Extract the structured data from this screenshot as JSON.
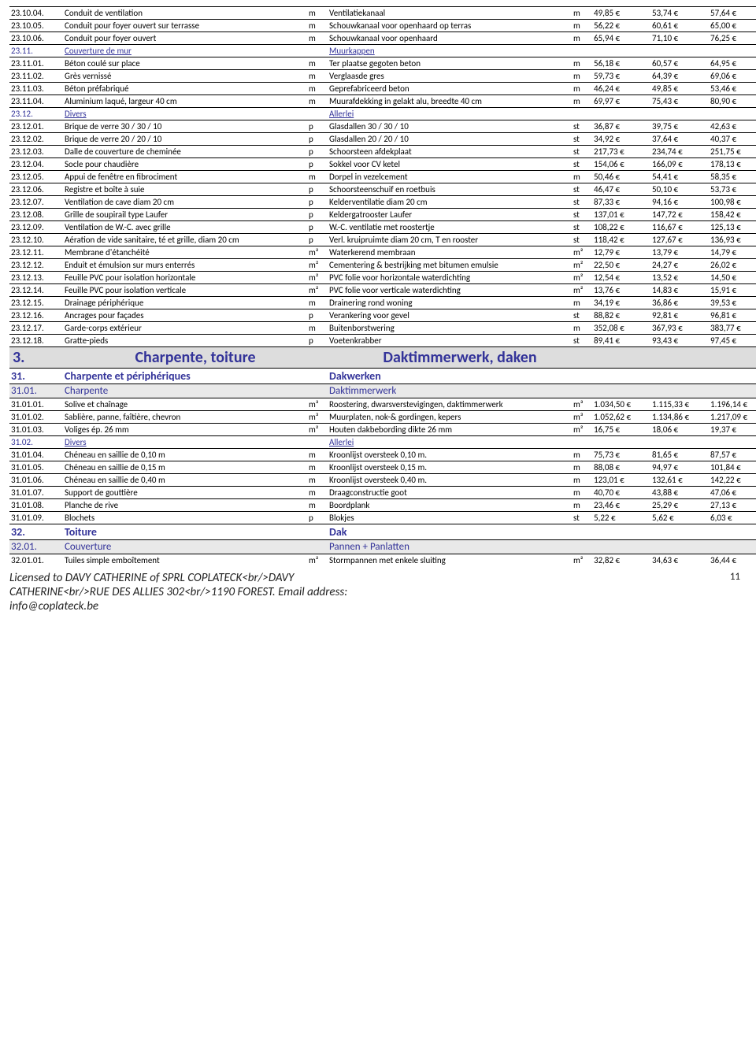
{
  "colors": {
    "accent": "#333399",
    "section_bg": "#dddddd",
    "subsection_bg": "#e9e9e9"
  },
  "columns": {
    "code_w": 68,
    "label_w": 310,
    "unit_w": 26,
    "num_w": 74
  },
  "page_number": "11",
  "footer_lines": [
    "Licensed to DAVY CATHERINE of SPRL COPLATECK<br/>DAVY",
    "CATHERINE<br/>RUE DES ALLIES 302<br/>1190 FOREST. Email address:",
    "info@coplateck.be"
  ],
  "rows": [
    {
      "t": "item",
      "code": "23.10.04.",
      "fr": "Conduit de ventilation",
      "u_fr": "m",
      "nl": "Ventilatiekanaal",
      "u_nl": "m",
      "c1": "49,85 €",
      "c2": "53,74 €",
      "c3": "57,64 €"
    },
    {
      "t": "item",
      "code": "23.10.05.",
      "fr": "Conduit pour foyer ouvert sur terrasse",
      "u_fr": "m",
      "nl": "Schouwkanaal voor openhaard op terras",
      "u_nl": "m",
      "c1": "56,22 €",
      "c2": "60,61 €",
      "c3": "65,00 €"
    },
    {
      "t": "item",
      "code": "23.10.06.",
      "fr": "Conduit pour foyer ouvert",
      "u_fr": "m",
      "nl": "Schouwkanaal  voor openhaard",
      "u_nl": "m",
      "c1": "65,94 €",
      "c2": "71,10 €",
      "c3": "76,25 €"
    },
    {
      "t": "sub",
      "code": "23.11.",
      "fr": "Couverture de mur",
      "nl": "Muurkappen"
    },
    {
      "t": "item",
      "code": "23.11.01.",
      "fr": "Béton coulé sur place",
      "u_fr": "m",
      "nl": "Ter plaatse gegoten beton",
      "u_nl": "m",
      "c1": "56,18 €",
      "c2": "60,57 €",
      "c3": "64,95 €"
    },
    {
      "t": "item",
      "code": "23.11.02.",
      "fr": "Grès vernissé",
      "u_fr": "m",
      "nl": "Verglaasde gres",
      "u_nl": "m",
      "c1": "59,73 €",
      "c2": "64,39 €",
      "c3": "69,06 €"
    },
    {
      "t": "item",
      "code": "23.11.03.",
      "fr": "Béton préfabriqué",
      "u_fr": "m",
      "nl": "Geprefabriceerd beton",
      "u_nl": "m",
      "c1": "46,24 €",
      "c2": "49,85 €",
      "c3": "53,46 €"
    },
    {
      "t": "item",
      "code": "23.11.04.",
      "fr": "Aluminium laqué, largeur 40 cm",
      "u_fr": "m",
      "nl": "Muurafdekking in gelakt alu, breedte 40 cm",
      "u_nl": "m",
      "c1": "69,97 €",
      "c2": "75,43 €",
      "c3": "80,90 €"
    },
    {
      "t": "sub",
      "code": "23.12.",
      "fr": "Divers",
      "nl": "Allerlei"
    },
    {
      "t": "item",
      "code": "23.12.01.",
      "fr": "Brique de verre 30 / 30 / 10",
      "u_fr": "p",
      "nl": "Glasdallen 30 / 30 / 10",
      "u_nl": "st",
      "c1": "36,87 €",
      "c2": "39,75 €",
      "c3": "42,63 €"
    },
    {
      "t": "item",
      "code": "23.12.02.",
      "fr": "Brique de verre 20 / 20 / 10",
      "u_fr": "p",
      "nl": "Glasdallen 20 / 20 / 10",
      "u_nl": "st",
      "c1": "34,92 €",
      "c2": "37,64 €",
      "c3": "40,37 €"
    },
    {
      "t": "item",
      "code": "23.12.03.",
      "fr": "Dalle de couverture de cheminée",
      "u_fr": "p",
      "nl": "Schoorsteen afdekplaat",
      "u_nl": "st",
      "c1": "217,73 €",
      "c2": "234,74 €",
      "c3": "251,75 €"
    },
    {
      "t": "item",
      "code": "23.12.04.",
      "fr": "Socle pour chaudière",
      "u_fr": "p",
      "nl": "Sokkel voor CV ketel",
      "u_nl": "st",
      "c1": "154,06 €",
      "c2": "166,09 €",
      "c3": "178,13 €"
    },
    {
      "t": "item",
      "code": "23.12.05.",
      "fr": "Appui de fenêtre en fibrociment",
      "u_fr": "m",
      "nl": "Dorpel in vezelcement",
      "u_nl": "m",
      "c1": "50,46 €",
      "c2": "54,41 €",
      "c3": "58,35 €"
    },
    {
      "t": "item",
      "code": "23.12.06.",
      "fr": "Registre et boîte à suie",
      "u_fr": "p",
      "nl": "Schoorsteenschuif en roetbuis",
      "u_nl": "st",
      "c1": "46,47 €",
      "c2": "50,10 €",
      "c3": "53,73 €"
    },
    {
      "t": "item",
      "code": "23.12.07.",
      "fr": "Ventilation de cave diam 20 cm",
      "u_fr": "p",
      "nl": "Kelderventilatie diam 20 cm",
      "u_nl": "st",
      "c1": "87,33 €",
      "c2": "94,16 €",
      "c3": "100,98 €"
    },
    {
      "t": "item",
      "code": "23.12.08.",
      "fr": "Grille de soupirail type Laufer",
      "u_fr": "p",
      "nl": "Keldergatrooster Laufer",
      "u_nl": "st",
      "c1": "137,01 €",
      "c2": "147,72 €",
      "c3": "158,42 €"
    },
    {
      "t": "item",
      "code": "23.12.09.",
      "fr": "Ventilation de W.-C. avec grille",
      "u_fr": "p",
      "nl": "W.-C. ventilatie met roostertje",
      "u_nl": "st",
      "c1": "108,22 €",
      "c2": "116,67 €",
      "c3": "125,13 €"
    },
    {
      "t": "item",
      "code": "23.12.10.",
      "fr": "Aération de vide sanitaire, té et grille, diam 20 cm",
      "u_fr": "p",
      "nl": "Verl. kruipruimte diam 20 cm, T en rooster",
      "u_nl": "st",
      "c1": "118,42 €",
      "c2": "127,67 €",
      "c3": "136,93 €"
    },
    {
      "t": "item",
      "code": "23.12.11.",
      "fr": "Membrane d'étanchéité",
      "u_fr": "m²",
      "nl": "Waterkerend membraan",
      "u_nl": "m²",
      "c1": "12,79 €",
      "c2": "13,79 €",
      "c3": "14,79 €"
    },
    {
      "t": "item",
      "code": "23.12.12.",
      "fr": "Enduit et émulsion sur murs enterrés",
      "u_fr": "m²",
      "nl": "Cementering & bestrijking met bitumen emulsie",
      "u_nl": "m²",
      "c1": "22,50 €",
      "c2": "24,27 €",
      "c3": "26,02 €"
    },
    {
      "t": "item",
      "code": "23.12.13.",
      "fr": "Feuille PVC pour isolation horizontale",
      "u_fr": "m²",
      "nl": "PVC folie voor horizontale waterdichting",
      "u_nl": "m²",
      "c1": "12,54 €",
      "c2": "13,52 €",
      "c3": "14,50 €"
    },
    {
      "t": "item",
      "code": "23.12.14.",
      "fr": "Feuille PVC pour isolation verticale",
      "u_fr": "m²",
      "nl": "PVC folie voor verticale waterdichting",
      "u_nl": "m²",
      "c1": "13,76 €",
      "c2": "14,83 €",
      "c3": "15,91 €"
    },
    {
      "t": "item",
      "code": "23.12.15.",
      "fr": "Drainage périphérique",
      "u_fr": "m",
      "nl": "Drainering rond woning",
      "u_nl": "m",
      "c1": "34,19 €",
      "c2": "36,86 €",
      "c3": "39,53 €"
    },
    {
      "t": "item",
      "code": "23.12.16.",
      "fr": "Ancrages pour façades",
      "u_fr": "p",
      "nl": "Verankering voor gevel",
      "u_nl": "st",
      "c1": "88,82 €",
      "c2": "92,81 €",
      "c3": "96,81 €"
    },
    {
      "t": "item",
      "code": "23.12.17.",
      "fr": "Garde-corps extérieur",
      "u_fr": "m",
      "nl": "Buitenborstwering",
      "u_nl": "m",
      "c1": "352,08 €",
      "c2": "367,93 €",
      "c3": "383,77 €"
    },
    {
      "t": "item",
      "code": "23.12.18.",
      "fr": "Gratte-pieds",
      "u_fr": "p",
      "nl": "Voetenkrabber",
      "u_nl": "st",
      "c1": "89,41 €",
      "c2": "93,43 €",
      "c3": "97,45 €"
    },
    {
      "t": "sec1",
      "code": "3.",
      "fr": "Charpente, toiture",
      "nl": "Daktimmerwerk, daken"
    },
    {
      "t": "sec2",
      "code": "31.",
      "fr": "Charpente et périphériques",
      "nl": "Dakwerken"
    },
    {
      "t": "sec3",
      "code": "31.01.",
      "fr": "Charpente",
      "nl": "Daktimmerwerk"
    },
    {
      "t": "item",
      "code": "31.01.01.",
      "fr": "Solive et chaînage",
      "u_fr": "m³",
      "nl": "Roostering, dwarsverstevigingen, daktimmerwerk",
      "u_nl": "m³",
      "c1": "1.034,50 €",
      "c2": "1.115,33 €",
      "c3": "1.196,14 €"
    },
    {
      "t": "item",
      "code": "31.01.02.",
      "fr": "Sablière, panne, faîtière, chevron",
      "u_fr": "m³",
      "nl": "Muurplaten,  nok-& gordingen, kepers",
      "u_nl": "m³",
      "c1": "1.052,62 €",
      "c2": "1.134,86 €",
      "c3": "1.217,09 €"
    },
    {
      "t": "item",
      "code": "31.01.03.",
      "fr": "Voliges ép. 26 mm",
      "u_fr": "m²",
      "nl": "Houten dakbebording dikte 26 mm",
      "u_nl": "m²",
      "c1": "16,75 €",
      "c2": "18,06 €",
      "c3": "19,37 €"
    },
    {
      "t": "sub",
      "code": "31.02.",
      "fr": "Divers",
      "nl": "Allerlei"
    },
    {
      "t": "item",
      "code": "31.01.04.",
      "fr": "Chéneau en saillie de 0,10 m",
      "u_fr": "m",
      "nl": "Kroonlijst oversteek 0,10 m.",
      "u_nl": "m",
      "c1": "75,73 €",
      "c2": "81,65 €",
      "c3": "87,57 €"
    },
    {
      "t": "item",
      "code": "31.01.05.",
      "fr": "Chéneau en saillie de 0,15 m",
      "u_fr": "m",
      "nl": "Kroonlijst oversteek 0,15 m.",
      "u_nl": "m",
      "c1": "88,08 €",
      "c2": "94,97 €",
      "c3": "101,84 €"
    },
    {
      "t": "item",
      "code": "31.01.06.",
      "fr": "Chéneau en saillie de 0,40 m",
      "u_fr": "m",
      "nl": "Kroonlijst oversteek 0,40 m.",
      "u_nl": "m",
      "c1": "123,01 €",
      "c2": "132,61 €",
      "c3": "142,22 €"
    },
    {
      "t": "item",
      "code": "31.01.07.",
      "fr": "Support de gouttière",
      "u_fr": "m",
      "nl": "Draagconstructie goot",
      "u_nl": "m",
      "c1": "40,70 €",
      "c2": "43,88 €",
      "c3": "47,06 €"
    },
    {
      "t": "item",
      "code": "31.01.08.",
      "fr": "Planche de rive",
      "u_fr": "m",
      "nl": "Boordplank",
      "u_nl": "m",
      "c1": "23,46 €",
      "c2": "25,29 €",
      "c3": "27,13 €"
    },
    {
      "t": "item",
      "code": "31.01.09.",
      "fr": "Blochets",
      "u_fr": "p",
      "nl": "Blokjes",
      "u_nl": "st",
      "c1": "5,22 €",
      "c2": "5,62 €",
      "c3": "6,03 €"
    },
    {
      "t": "sec2",
      "code": "32.",
      "fr": "Toiture",
      "nl": "Dak"
    },
    {
      "t": "sec3",
      "code": "32.01.",
      "fr": "Couverture",
      "nl": "Pannen + Panlatten"
    },
    {
      "t": "item",
      "code": "32.01.01.",
      "fr": "Tuiles simple emboîtement",
      "u_fr": "m²",
      "nl": "Stormpannen met enkele sluiting",
      "u_nl": "m²",
      "c1": "32,82 €",
      "c2": "34,63 €",
      "c3": "36,44 €"
    }
  ]
}
